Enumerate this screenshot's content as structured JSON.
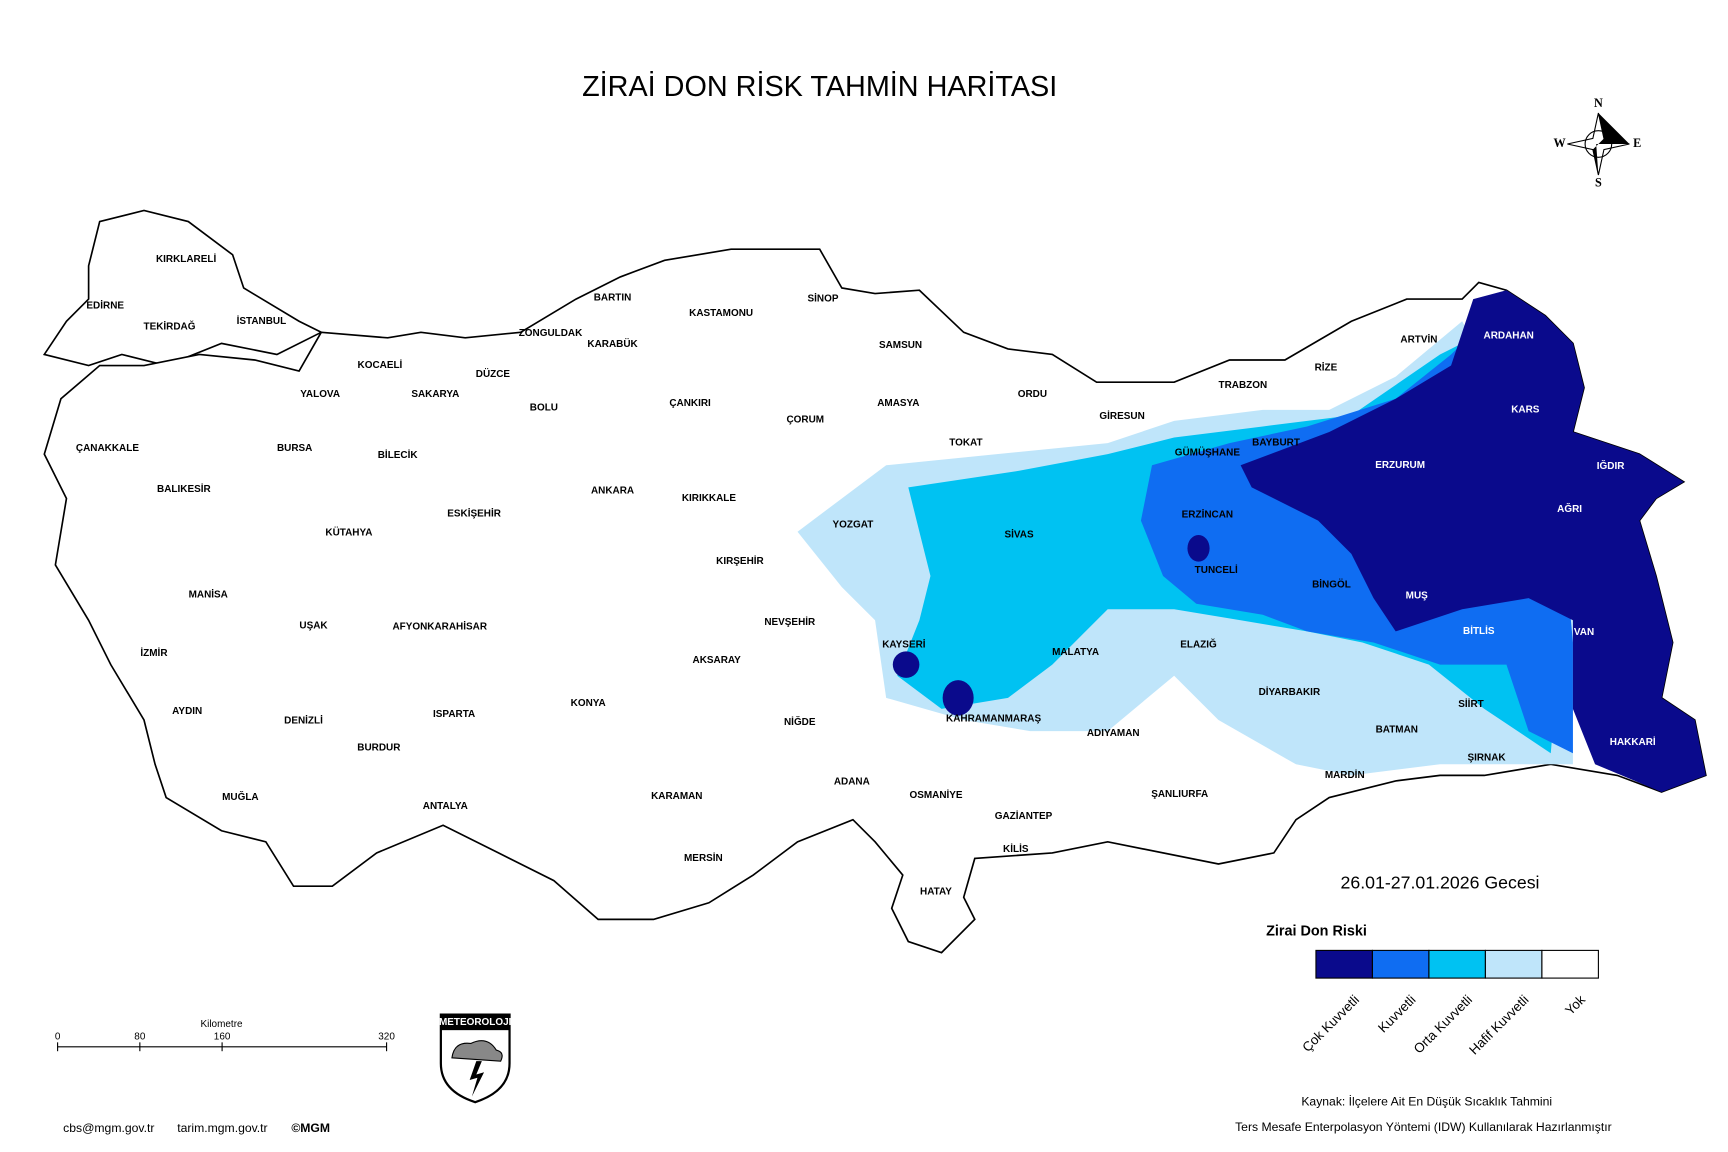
{
  "title": "ZİRAİ DON RİSK TAHMİN HARİTASI",
  "compass": {
    "n": "N",
    "e": "E",
    "s": "S",
    "w": "W"
  },
  "provinces": [
    "KIRKLARELİ",
    "EDİRNE",
    "TEKİRDAĞ",
    "İSTANBUL",
    "KOCAELİ",
    "YALOVA",
    "SAKARYA",
    "DÜZCE",
    "ZONGULDAK",
    "BARTIN",
    "KARABÜK",
    "KASTAMONU",
    "SİNOP",
    "SAMSUN",
    "ÇANAKKALE",
    "BALIKESİR",
    "BURSA",
    "BİLECİK",
    "BOLU",
    "ÇANKIRI",
    "ÇORUM",
    "AMASYA",
    "ORDU",
    "GİRESUN",
    "TRABZON",
    "RİZE",
    "ARTVİN",
    "ARDAHAN",
    "KARS",
    "IĞDIR",
    "AĞRI",
    "ERZURUM",
    "BAYBURT",
    "GÜMÜŞHANE",
    "TOKAT",
    "ESKİŞEHİR",
    "KÜTAHYA",
    "ANKARA",
    "KIRIKKALE",
    "YOZGAT",
    "SİVAS",
    "ERZİNCAN",
    "TUNCELİ",
    "BİNGÖL",
    "MUŞ",
    "MANİSA",
    "UŞAK",
    "AFYONKARAHİSAR",
    "KIRŞEHİR",
    "NEVŞEHİR",
    "KAYSERİ",
    "MALATYA",
    "ELAZIĞ",
    "BİTLİS",
    "VAN",
    "İZMİR",
    "AYDIN",
    "DENİZLİ",
    "ISPARTA",
    "KONYA",
    "AKSARAY",
    "NİĞDE",
    "KAHRAMANMARAŞ",
    "ADIYAMAN",
    "DİYARBAKIR",
    "SİİRT",
    "BATMAN",
    "ŞIRNAK",
    "HAKKARİ",
    "MARDİN",
    "BURDUR",
    "MUĞLA",
    "ANTALYA",
    "KARAMAN",
    "ADANA",
    "OSMANİYE",
    "GAZİANTEP",
    "ŞANLIURFA",
    "KİLİS",
    "MERSİN",
    "HATAY"
  ],
  "date": "26.01-27.01.2026 Gecesi",
  "legend": {
    "title": "Zirai Don Riski",
    "items": [
      {
        "label": "Çok Kuvvetli",
        "color": "#0a0a8c"
      },
      {
        "label": "Kuvvetli",
        "color": "#0f6df2"
      },
      {
        "label": "Orta Kuvvetli",
        "color": "#00c2f2"
      },
      {
        "label": "Hafif Kuvvetli",
        "color": "#bfe5fa"
      },
      {
        "label": "Yok",
        "color": "#ffffff"
      }
    ]
  },
  "scale_bar": {
    "unit": "Kilometre",
    "ticks": [
      0,
      80,
      160,
      320
    ]
  },
  "logo": "METEOROLOJI",
  "source": [
    "Kaynak: İlçelere Ait En Düşük Sıcaklık Tahmini",
    "Ters Mesafe Enterpolasyon Yöntemi (IDW) Kullanılarak Hazırlanmıştır"
  ],
  "footer": [
    "cbs@mgm.gov.tr",
    "tarim.mgm.gov.tr",
    "©MGM"
  ]
}
